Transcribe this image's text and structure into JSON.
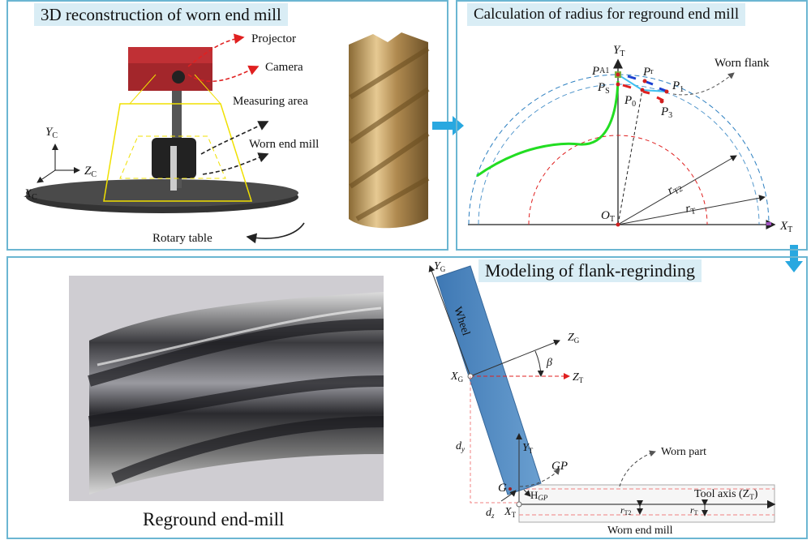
{
  "panels": {
    "reconstruction": {
      "title": "3D reconstruction of worn end mill",
      "labels": {
        "projector": "Projector",
        "camera": "Camera",
        "measuring_area": "Measuring area",
        "worn_end_mill": "Worn end mill",
        "rotary_table": "Rotary table",
        "yc": "Y",
        "zc": "Z",
        "xc": "X",
        "sub_c": "C"
      }
    },
    "radius": {
      "title": "Calculation of radius for reground end mill",
      "labels": {
        "yt": "Y",
        "xt": "X",
        "ot": "O",
        "sub_t": "T",
        "pa1": "P",
        "pa1_sub": "A1",
        "ps": "P",
        "ps_sub": "S",
        "pr": "P",
        "pr_sub": "r",
        "p1": "P",
        "p1_sub": "1",
        "p0": "P",
        "p0_sub": "0",
        "p3": "P",
        "p3_sub": "3",
        "worn_flank": "Worn flank",
        "rt2": "r",
        "rt2_sub": "T2",
        "rt": "r",
        "rt_sub": "T"
      }
    },
    "modeling": {
      "title": "Modeling of flank-regrinding",
      "caption": "Reground end-mill",
      "labels": {
        "wheel": "Wheel",
        "yg": "Y",
        "zg": "Z",
        "xg": "X",
        "sub_g": "G",
        "zt": "Z",
        "yt": "Y",
        "xt": "X",
        "sub_t": "T",
        "beta": "β",
        "dy": "d",
        "dy_sub": "y",
        "dz": "d",
        "dz_sub": "z",
        "g": "G",
        "gp": "GP",
        "hgp": "H",
        "hgp_sub": "GP",
        "worn_part": "Worn part",
        "tool_axis": "Tool axis (Z",
        "tool_axis_sub": "T",
        "tool_axis_close": ")",
        "rt2": "r",
        "rt2_sub": "T2",
        "rt": "r",
        "rt_sub": "T",
        "worn_end_mill": "Worn end mill"
      }
    }
  },
  "colors": {
    "border": "#6bb6d2",
    "title_bg": "#d9edf5",
    "arrow": "#29a8e0",
    "wheel": "#4a86c0",
    "flank_curve": "#22dd22",
    "circle_blue": "#2c7fc0",
    "circle_red": "#e02020"
  }
}
